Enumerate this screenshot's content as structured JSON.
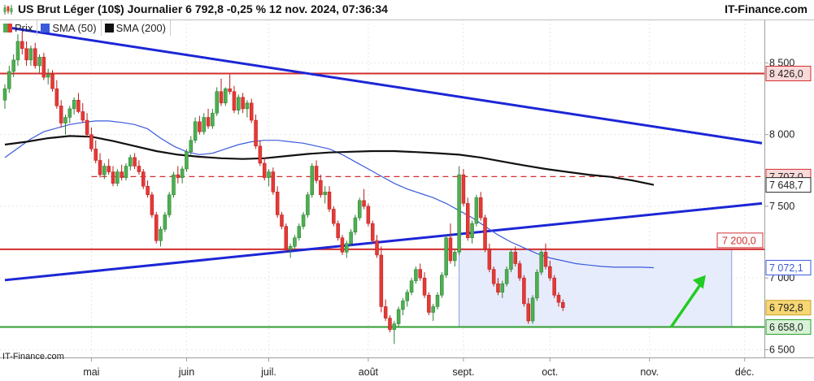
{
  "header": {
    "title": "US Brut Léger (10$) Journalier 6 792,8 -0,25 % 12 nov. 2024, 07:36:34",
    "site": "IT-Finance.com"
  },
  "legend": {
    "items": [
      {
        "label": "Prix",
        "color": "#4caf50",
        "color2": "#e53935"
      },
      {
        "label": "SMA (50)",
        "color": "#3a5bdc"
      },
      {
        "label": "SMA (200)",
        "color": "#111111"
      }
    ]
  },
  "watermark": "IT-Finance.com",
  "chart_data": {
    "type": "candlestick",
    "ylim": [
      6440,
      8780
    ],
    "y_ticks": [
      {
        "value": 8500,
        "label": "8 500"
      },
      {
        "value": 8000,
        "label": "8 000"
      },
      {
        "value": 7500,
        "label": "7 500"
      },
      {
        "value": 7000,
        "label": "7 000"
      },
      {
        "value": 6500,
        "label": "6 500"
      }
    ],
    "x_ticks": [
      {
        "label": "mai",
        "index": 20
      },
      {
        "label": "juin",
        "index": 42
      },
      {
        "label": "juil.",
        "index": 61
      },
      {
        "label": "août",
        "index": 84
      },
      {
        "label": "sept.",
        "index": 106
      },
      {
        "label": "oct.",
        "index": 126
      },
      {
        "label": "nov.",
        "index": 149
      },
      {
        "label": "déc.",
        "index": 171
      }
    ],
    "candles": [
      [
        8240,
        8350,
        8180,
        8320
      ],
      [
        8320,
        8480,
        8290,
        8440
      ],
      [
        8440,
        8560,
        8400,
        8520
      ],
      [
        8520,
        8700,
        8480,
        8650
      ],
      [
        8650,
        8720,
        8560,
        8600
      ],
      [
        8600,
        8650,
        8480,
        8520
      ],
      [
        8520,
        8620,
        8480,
        8600
      ],
      [
        8600,
        8640,
        8460,
        8480
      ],
      [
        8480,
        8560,
        8430,
        8540
      ],
      [
        8540,
        8570,
        8380,
        8400
      ],
      [
        8400,
        8460,
        8350,
        8420
      ],
      [
        8420,
        8450,
        8300,
        8320
      ],
      [
        8320,
        8380,
        8180,
        8200
      ],
      [
        8200,
        8240,
        8050,
        8080
      ],
      [
        8080,
        8140,
        8000,
        8120
      ],
      [
        8120,
        8200,
        8080,
        8180
      ],
      [
        8180,
        8260,
        8140,
        8240
      ],
      [
        8240,
        8290,
        8150,
        8160
      ],
      [
        8160,
        8220,
        8080,
        8100
      ],
      [
        8100,
        8150,
        7980,
        8000
      ],
      [
        8000,
        8050,
        7880,
        7900
      ],
      [
        7900,
        7960,
        7800,
        7820
      ],
      [
        7820,
        7870,
        7700,
        7720
      ],
      [
        7720,
        7800,
        7690,
        7780
      ],
      [
        7780,
        7830,
        7720,
        7740
      ],
      [
        7740,
        7780,
        7640,
        7660
      ],
      [
        7660,
        7760,
        7640,
        7740
      ],
      [
        7740,
        7790,
        7680,
        7700
      ],
      [
        7700,
        7800,
        7680,
        7780
      ],
      [
        7780,
        7860,
        7750,
        7840
      ],
      [
        7840,
        7870,
        7760,
        7780
      ],
      [
        7780,
        7820,
        7720,
        7740
      ],
      [
        7740,
        7760,
        7620,
        7640
      ],
      [
        7640,
        7680,
        7560,
        7580
      ],
      [
        7580,
        7600,
        7420,
        7440
      ],
      [
        7440,
        7460,
        7240,
        7260
      ],
      [
        7260,
        7360,
        7220,
        7340
      ],
      [
        7340,
        7460,
        7320,
        7440
      ],
      [
        7440,
        7600,
        7420,
        7580
      ],
      [
        7580,
        7740,
        7560,
        7720
      ],
      [
        7720,
        7780,
        7660,
        7700
      ],
      [
        7700,
        7780,
        7660,
        7760
      ],
      [
        7760,
        7900,
        7740,
        7880
      ],
      [
        7880,
        7990,
        7860,
        7960
      ],
      [
        7960,
        8120,
        7940,
        8090
      ],
      [
        8090,
        8130,
        8000,
        8020
      ],
      [
        8020,
        8150,
        8000,
        8120
      ],
      [
        8120,
        8180,
        8040,
        8060
      ],
      [
        8060,
        8180,
        8040,
        8150
      ],
      [
        8150,
        8330,
        8130,
        8300
      ],
      [
        8300,
        8390,
        8200,
        8220
      ],
      [
        8220,
        8330,
        8200,
        8320
      ],
      [
        8320,
        8420,
        8280,
        8300
      ],
      [
        8300,
        8340,
        8150,
        8170
      ],
      [
        8170,
        8280,
        8140,
        8260
      ],
      [
        8260,
        8290,
        8150,
        8180
      ],
      [
        8180,
        8240,
        8120,
        8220
      ],
      [
        8220,
        8250,
        8080,
        8100
      ],
      [
        8100,
        8140,
        7900,
        7920
      ],
      [
        7920,
        7960,
        7780,
        7800
      ],
      [
        7800,
        7840,
        7680,
        7700
      ],
      [
        7700,
        7760,
        7640,
        7740
      ],
      [
        7740,
        7770,
        7580,
        7600
      ],
      [
        7600,
        7640,
        7420,
        7440
      ],
      [
        7440,
        7460,
        7340,
        7360
      ],
      [
        7360,
        7380,
        7180,
        7200
      ],
      [
        7200,
        7240,
        7140,
        7220
      ],
      [
        7220,
        7300,
        7200,
        7280
      ],
      [
        7280,
        7380,
        7260,
        7360
      ],
      [
        7360,
        7460,
        7340,
        7440
      ],
      [
        7440,
        7600,
        7420,
        7580
      ],
      [
        7580,
        7800,
        7560,
        7780
      ],
      [
        7780,
        7820,
        7660,
        7680
      ],
      [
        7680,
        7720,
        7560,
        7580
      ],
      [
        7580,
        7640,
        7520,
        7600
      ],
      [
        7600,
        7640,
        7460,
        7480
      ],
      [
        7480,
        7500,
        7360,
        7380
      ],
      [
        7380,
        7400,
        7260,
        7280
      ],
      [
        7280,
        7300,
        7160,
        7180
      ],
      [
        7180,
        7260,
        7140,
        7240
      ],
      [
        7240,
        7340,
        7220,
        7320
      ],
      [
        7320,
        7440,
        7300,
        7420
      ],
      [
        7420,
        7560,
        7400,
        7540
      ],
      [
        7540,
        7620,
        7480,
        7500
      ],
      [
        7500,
        7520,
        7360,
        7380
      ],
      [
        7380,
        7400,
        7240,
        7260
      ],
      [
        7260,
        7300,
        7140,
        7160
      ],
      [
        7160,
        7220,
        6760,
        6800
      ],
      [
        6800,
        6850,
        6700,
        6720
      ],
      [
        6720,
        6740,
        6620,
        6640
      ],
      [
        6640,
        6700,
        6540,
        6680
      ],
      [
        6680,
        6800,
        6660,
        6780
      ],
      [
        6780,
        6860,
        6740,
        6840
      ],
      [
        6840,
        6920,
        6800,
        6900
      ],
      [
        6900,
        7000,
        6880,
        6980
      ],
      [
        6980,
        7080,
        6960,
        7060
      ],
      [
        7060,
        7100,
        6980,
        7000
      ],
      [
        7000,
        7040,
        6860,
        6880
      ],
      [
        6880,
        6900,
        6740,
        6760
      ],
      [
        6760,
        6820,
        6700,
        6800
      ],
      [
        6800,
        6900,
        6780,
        6880
      ],
      [
        6880,
        7040,
        6860,
        7020
      ],
      [
        7020,
        7300,
        7000,
        7280
      ],
      [
        7280,
        7380,
        7100,
        7120
      ],
      [
        7120,
        7200,
        7080,
        7180
      ],
      [
        7180,
        7780,
        7160,
        7720
      ],
      [
        7720,
        7760,
        7500,
        7520
      ],
      [
        7520,
        7560,
        7260,
        7280
      ],
      [
        7280,
        7400,
        7240,
        7380
      ],
      [
        7380,
        7580,
        7360,
        7560
      ],
      [
        7560,
        7600,
        7400,
        7420
      ],
      [
        7420,
        7440,
        7180,
        7200
      ],
      [
        7200,
        7240,
        7040,
        7060
      ],
      [
        7060,
        7080,
        6940,
        6960
      ],
      [
        6960,
        7000,
        6880,
        6900
      ],
      [
        6900,
        6980,
        6860,
        6960
      ],
      [
        6960,
        7080,
        6940,
        7060
      ],
      [
        7060,
        7200,
        7040,
        7180
      ],
      [
        7180,
        7220,
        7080,
        7100
      ],
      [
        7100,
        7120,
        6980,
        7000
      ],
      [
        7000,
        7020,
        6800,
        6820
      ],
      [
        6820,
        6860,
        6680,
        6700
      ],
      [
        6700,
        6880,
        6680,
        6860
      ],
      [
        6860,
        7060,
        6840,
        7040
      ],
      [
        7040,
        7200,
        7020,
        7180
      ],
      [
        7180,
        7240,
        7060,
        7080
      ],
      [
        7080,
        7120,
        6980,
        7000
      ],
      [
        7000,
        7020,
        6860,
        6880
      ],
      [
        6880,
        6900,
        6800,
        6830
      ],
      [
        6830,
        6850,
        6770,
        6792.8
      ]
    ],
    "series": [
      {
        "name": "SMA (50)",
        "color": "#3a5bdc",
        "values": [
          [
            0,
            7840
          ],
          [
            3,
            7905
          ],
          [
            6,
            7970
          ],
          [
            9,
            8020
          ],
          [
            12,
            8045
          ],
          [
            15,
            8070
          ],
          [
            18,
            8085
          ],
          [
            21,
            8095
          ],
          [
            24,
            8095
          ],
          [
            27,
            8085
          ],
          [
            30,
            8070
          ],
          [
            33,
            8040
          ],
          [
            36,
            7975
          ],
          [
            39,
            7920
          ],
          [
            42,
            7880
          ],
          [
            45,
            7860
          ],
          [
            48,
            7870
          ],
          [
            51,
            7900
          ],
          [
            54,
            7930
          ],
          [
            57,
            7950
          ],
          [
            60,
            7960
          ],
          [
            63,
            7960
          ],
          [
            66,
            7950
          ],
          [
            69,
            7940
          ],
          [
            72,
            7920
          ],
          [
            75,
            7900
          ],
          [
            78,
            7860
          ],
          [
            81,
            7810
          ],
          [
            84,
            7760
          ],
          [
            87,
            7710
          ],
          [
            90,
            7660
          ],
          [
            93,
            7620
          ],
          [
            96,
            7590
          ],
          [
            99,
            7560
          ],
          [
            102,
            7520
          ],
          [
            105,
            7470
          ],
          [
            108,
            7420
          ],
          [
            111,
            7360
          ],
          [
            114,
            7300
          ],
          [
            117,
            7250
          ],
          [
            120,
            7210
          ],
          [
            123,
            7170
          ],
          [
            126,
            7140
          ],
          [
            129,
            7120
          ],
          [
            132,
            7100
          ],
          [
            135,
            7090
          ],
          [
            138,
            7080
          ],
          [
            141,
            7075
          ],
          [
            144,
            7075
          ],
          [
            147,
            7075
          ],
          [
            150,
            7072
          ]
        ]
      },
      {
        "name": "SMA (200)",
        "color": "#111111",
        "values": [
          [
            0,
            7930
          ],
          [
            5,
            7950
          ],
          [
            10,
            7975
          ],
          [
            15,
            7990
          ],
          [
            20,
            7985
          ],
          [
            25,
            7955
          ],
          [
            30,
            7920
          ],
          [
            35,
            7885
          ],
          [
            40,
            7860
          ],
          [
            45,
            7845
          ],
          [
            50,
            7835
          ],
          [
            55,
            7830
          ],
          [
            60,
            7835
          ],
          [
            65,
            7850
          ],
          [
            70,
            7865
          ],
          [
            75,
            7875
          ],
          [
            80,
            7880
          ],
          [
            85,
            7885
          ],
          [
            90,
            7885
          ],
          [
            95,
            7878
          ],
          [
            100,
            7870
          ],
          [
            105,
            7860
          ],
          [
            110,
            7840
          ],
          [
            115,
            7812
          ],
          [
            120,
            7785
          ],
          [
            125,
            7760
          ],
          [
            130,
            7740
          ],
          [
            135,
            7720
          ],
          [
            140,
            7705
          ],
          [
            145,
            7680
          ],
          [
            150,
            7649
          ]
        ]
      }
    ],
    "trendlines": [
      {
        "color": "#1c26d6",
        "points": [
          [
            0,
            8750
          ],
          [
            175,
            7940
          ]
        ]
      },
      {
        "color": "#1c26d6",
        "points": [
          [
            0,
            6985
          ],
          [
            175,
            7520
          ]
        ]
      }
    ],
    "horizontal_lines": [
      {
        "value": 8426.0,
        "color": "#d32f2f",
        "style": "solid"
      },
      {
        "value": 7707.0,
        "color": "#d32f2f",
        "style": "dashed",
        "from": 20
      },
      {
        "value": 7200.0,
        "color": "#d32f2f",
        "style": "solid"
      },
      {
        "value": 6658.0,
        "color": "#2e9e2e",
        "style": "solid"
      }
    ],
    "range_box": {
      "x_from": 105,
      "x_to": 168,
      "y_low": 6658,
      "y_high": 7200
    },
    "arrow": {
      "from": [
        154,
        6658
      ],
      "to": [
        162,
        7020
      ],
      "color": "#22cc22"
    },
    "price_labels": [
      {
        "value": 8426.0,
        "text": "8 426,0",
        "bg": "#f9d9d9",
        "border": "#d32f2f",
        "color": "#222"
      },
      {
        "value": 7707.0,
        "text": "7 707,0",
        "bg": "#f9d9d9",
        "border": "#d32f2f",
        "color": "#222"
      },
      {
        "value": 7648.7,
        "text": "7 648,7",
        "bg": "#ffffff",
        "border": "#222222",
        "color": "#222"
      },
      {
        "value": 7072.1,
        "text": "7 072,1",
        "bg": "#ffffff",
        "border": "#3a5bdc",
        "color": "#3a5bdc"
      },
      {
        "value": 6792.8,
        "text": "6 792,8",
        "bg": "#f7d774",
        "border": "#c9a227",
        "color": "#222"
      },
      {
        "value": 6658.0,
        "text": "6 658,0",
        "bg": "#d7f2d7",
        "border": "#2e9e2e",
        "color": "#222"
      }
    ],
    "annotation": {
      "text": "7 200,0",
      "value": 7200.0,
      "color": "#d32f2f"
    }
  }
}
